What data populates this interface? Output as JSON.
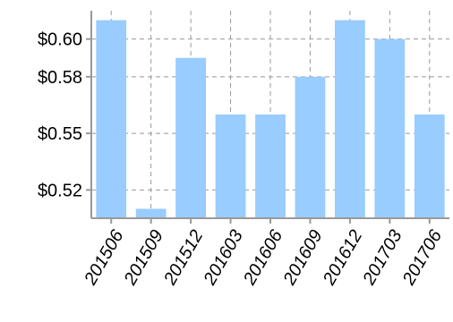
{
  "chart_data": {
    "type": "bar",
    "categories": [
      "201506",
      "201509",
      "201512",
      "201603",
      "201606",
      "201609",
      "201612",
      "201703",
      "201706"
    ],
    "values": [
      0.61,
      0.51,
      0.59,
      0.56,
      0.56,
      0.58,
      0.61,
      0.6,
      0.56
    ],
    "ylim": [
      0.505,
      0.615
    ],
    "yticks": [
      0.52,
      0.55,
      0.58,
      0.6
    ],
    "ytick_labels": [
      "$0.52",
      "$0.55",
      "$0.58",
      "$0.60"
    ],
    "title": "",
    "xlabel": "",
    "ylabel": "",
    "grid": true,
    "legend": "none",
    "bar_color": "#99ccff",
    "axis_color": "#999999",
    "grid_color": "#999999"
  }
}
